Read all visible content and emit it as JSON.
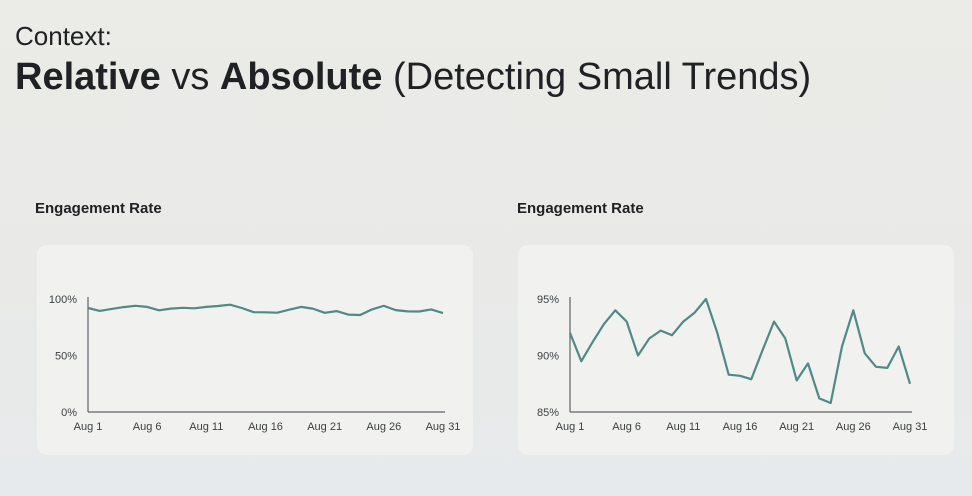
{
  "slide": {
    "context_label": "Context:",
    "title_part1": "Relative",
    "title_part2": "vs",
    "title_part3": "Absolute",
    "title_part4": "(Detecting Small Trends)"
  },
  "colors": {
    "line": "#4f8a86",
    "panel": "#f1f1f0"
  },
  "chart_data": [
    {
      "type": "line",
      "title": "Engagement Rate",
      "ylim": [
        0,
        100
      ],
      "yticks": [
        "0%",
        "50%",
        "100%"
      ],
      "ytick_values": [
        0,
        50,
        100
      ],
      "xticks": [
        "Aug 1",
        "Aug 6",
        "Aug 11",
        "Aug 16",
        "Aug 21",
        "Aug 26",
        "Aug 31"
      ],
      "x": [
        1,
        2,
        3,
        4,
        5,
        6,
        7,
        8,
        9,
        10,
        11,
        12,
        13,
        14,
        15,
        16,
        17,
        18,
        19,
        20,
        21,
        22,
        23,
        24,
        25,
        26,
        27,
        28,
        29,
        30,
        31
      ],
      "values": [
        92,
        89.5,
        91.2,
        92.8,
        94,
        93,
        90,
        91.5,
        92.2,
        91.8,
        93,
        93.8,
        95,
        92,
        88.3,
        88.2,
        87.9,
        90.5,
        93,
        91.5,
        87.8,
        89.3,
        86.2,
        85.8,
        90.8,
        94,
        90.2,
        89,
        88.9,
        90.8,
        87.5
      ],
      "xlabel": "",
      "ylabel": ""
    },
    {
      "type": "line",
      "title": "Engagement Rate",
      "ylim": [
        85,
        95
      ],
      "yticks": [
        "85%",
        "90%",
        "95%"
      ],
      "ytick_values": [
        85,
        90,
        95
      ],
      "xticks": [
        "Aug 1",
        "Aug 6",
        "Aug 11",
        "Aug 16",
        "Aug 21",
        "Aug 26",
        "Aug 31"
      ],
      "x": [
        1,
        2,
        3,
        4,
        5,
        6,
        7,
        8,
        9,
        10,
        11,
        12,
        13,
        14,
        15,
        16,
        17,
        18,
        19,
        20,
        21,
        22,
        23,
        24,
        25,
        26,
        27,
        28,
        29,
        30,
        31
      ],
      "values": [
        92,
        89.5,
        91.2,
        92.8,
        94,
        93,
        90,
        91.5,
        92.2,
        91.8,
        93,
        93.8,
        95,
        92,
        88.3,
        88.2,
        87.9,
        90.5,
        93,
        91.5,
        87.8,
        89.3,
        86.2,
        85.8,
        90.8,
        94,
        90.2,
        89,
        88.9,
        90.8,
        87.5
      ],
      "xlabel": "",
      "ylabel": ""
    }
  ]
}
